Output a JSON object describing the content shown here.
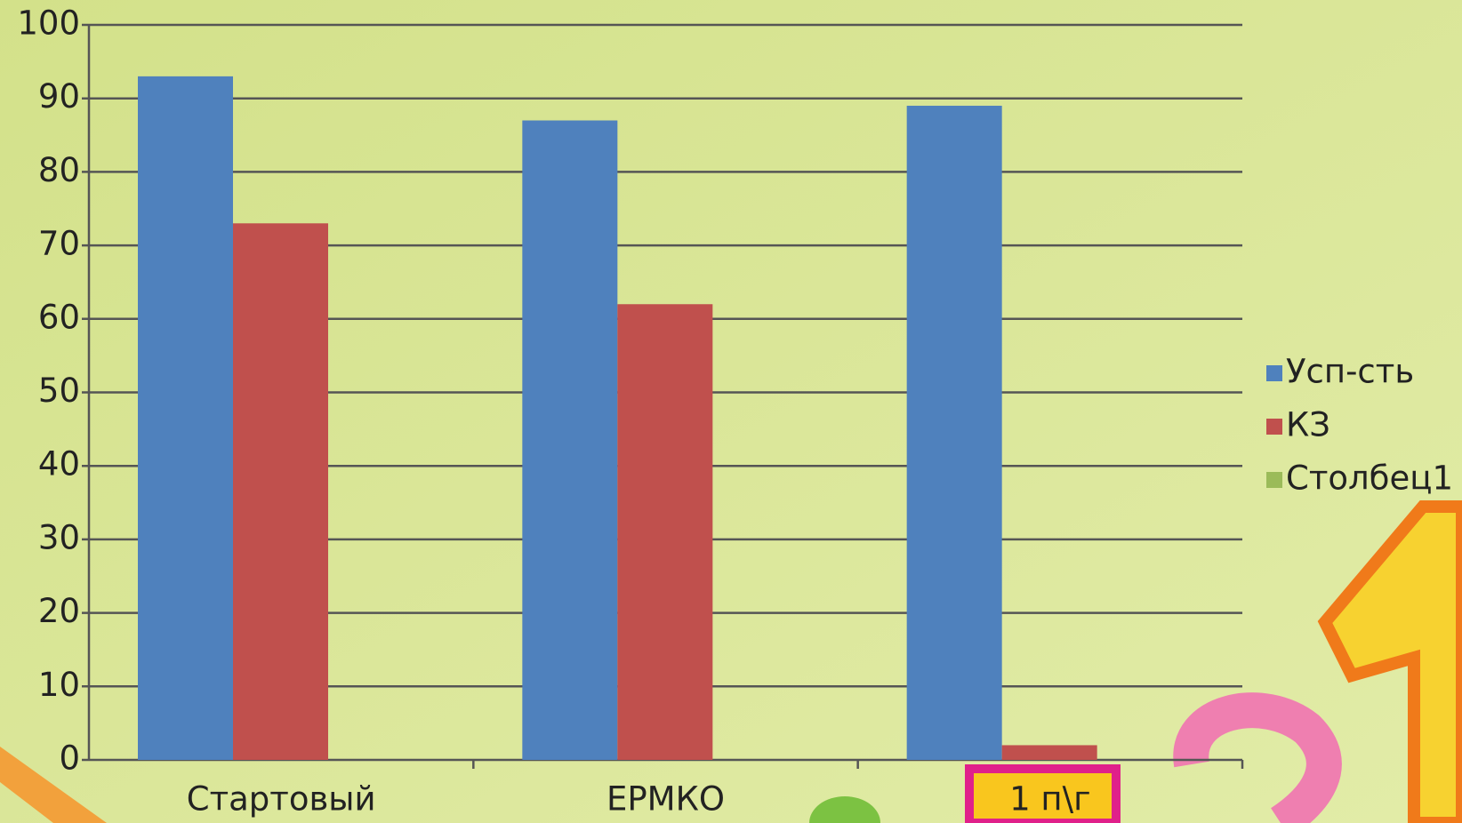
{
  "chart_data": {
    "type": "bar",
    "categories": [
      "Стартовый",
      "ЕРМКО",
      "1 п\\г"
    ],
    "series": [
      {
        "name": "Усп-сть",
        "color": "#4f81bd",
        "values": [
          93,
          87,
          89
        ]
      },
      {
        "name": "КЗ",
        "color": "#c0504d",
        "values": [
          73,
          62,
          2
        ]
      },
      {
        "name": "Столбец1",
        "color": "#9bbb59",
        "values": [
          null,
          null,
          null
        ]
      }
    ],
    "ylim": [
      0,
      100
    ],
    "yticks": [
      0,
      10,
      20,
      30,
      40,
      50,
      60,
      70,
      80,
      90,
      100
    ],
    "grid": true,
    "legend": "right"
  }
}
